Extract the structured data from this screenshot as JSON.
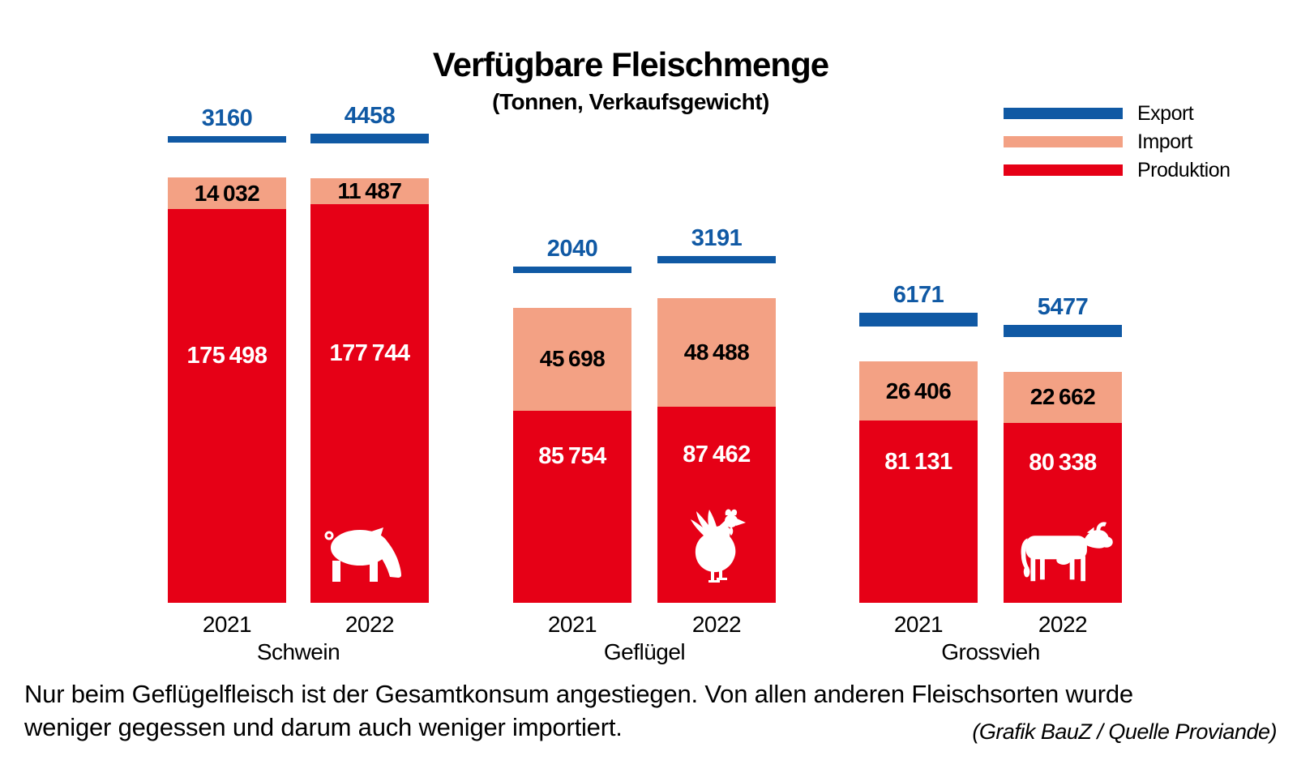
{
  "title": "Verfügbare Fleischmenge",
  "subtitle": "(Tonnen, Verkaufsgewicht)",
  "legend": {
    "items": [
      {
        "label": "Export",
        "color": "#1059a4"
      },
      {
        "label": "Import",
        "color": "#f3a184"
      },
      {
        "label": "Produktion",
        "color": "#e60016"
      }
    ]
  },
  "chart_data": {
    "type": "bar",
    "stacked": true,
    "title": "Verfügbare Fleischmenge",
    "subtitle": "(Tonnen, Verkaufsgewicht)",
    "unit": "Tonnen (Verkaufsgewicht)",
    "legend_position": "top-right",
    "series_names": [
      "Export",
      "Import",
      "Produktion"
    ],
    "groups": [
      {
        "category": "Schwein",
        "bars": [
          {
            "year": "2021",
            "export": 3160,
            "import": 14032,
            "produktion": 175498,
            "icon": null
          },
          {
            "year": "2022",
            "export": 4458,
            "import": 11487,
            "produktion": 177744,
            "icon": "pig"
          }
        ]
      },
      {
        "category": "Geflügel",
        "bars": [
          {
            "year": "2021",
            "export": 2040,
            "import": 45698,
            "produktion": 85754,
            "icon": null
          },
          {
            "year": "2022",
            "export": 3191,
            "import": 48488,
            "produktion": 87462,
            "icon": "chicken"
          }
        ]
      },
      {
        "category": "Grossvieh",
        "bars": [
          {
            "year": "2021",
            "export": 6171,
            "import": 26406,
            "produktion": 81131,
            "icon": null
          },
          {
            "year": "2022",
            "export": 5477,
            "import": 22662,
            "produktion": 80338,
            "icon": "cow"
          }
        ]
      }
    ]
  },
  "caption": {
    "line1": "Nur beim Geflügelfleisch ist der Gesamtkonsum angestiegen. Von allen anderen Fleischsorten wurde",
    "line2": "weniger gegessen und darum auch weniger importiert."
  },
  "credit": "(Grafik BauZ / Quelle Proviande)",
  "colors": {
    "export": "#1059a4",
    "import": "#f3a184",
    "produktion": "#e60016",
    "value_text_blue": "#1059a4",
    "value_text_black": "#000000",
    "value_text_white": "#ffffff"
  }
}
